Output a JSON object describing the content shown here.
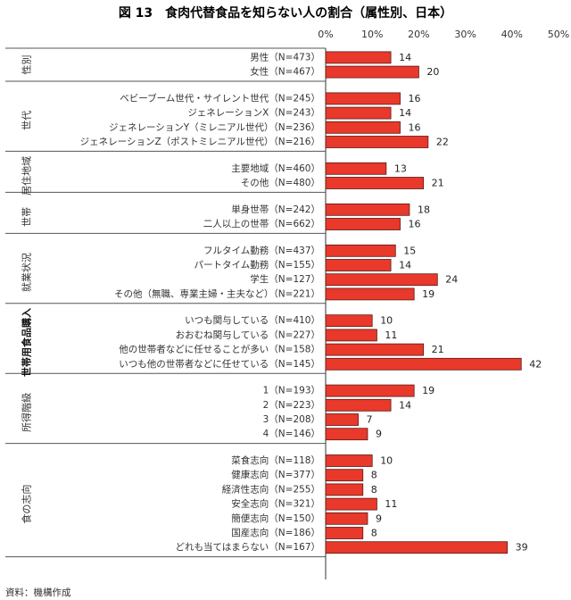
{
  "title": "図 13　食肉代替食品を知らない人の割合（属性別、日本）",
  "source": "資料：機構作成",
  "chart_data": {
    "type": "bar",
    "orientation": "horizontal",
    "xlim": [
      0,
      50
    ],
    "ticks": [
      "0%",
      "10%",
      "20%",
      "30%",
      "40%",
      "50%"
    ],
    "tick_values": [
      0,
      10,
      20,
      30,
      40,
      50
    ],
    "bar_color": "#e8392b",
    "groups": [
      {
        "label": "性別",
        "bold": false,
        "rows": [
          {
            "label": "男性（N=473）",
            "value": 14
          },
          {
            "label": "女性（N=467）",
            "value": 20
          }
        ]
      },
      {
        "label": "世代",
        "bold": false,
        "rows": [
          {
            "label": "ベビーブーム世代・サイレント世代（N=245）",
            "value": 16
          },
          {
            "label": "ジェネレーションX（N=243）",
            "value": 14
          },
          {
            "label": "ジェネレーションY（ミレニアル世代）（N=236）",
            "value": 16
          },
          {
            "label": "ジェネレーションZ（ポストミレニアル世代）（N=216）",
            "value": 22
          }
        ]
      },
      {
        "label": "居住地域",
        "bold": false,
        "rows": [
          {
            "label": "主要地域（N=460）",
            "value": 13
          },
          {
            "label": "その他（N=480）",
            "value": 21
          }
        ]
      },
      {
        "label": "世帯",
        "bold": false,
        "rows": [
          {
            "label": "単身世帯（N=242）",
            "value": 18
          },
          {
            "label": "二人以上の世帯（N=662）",
            "value": 16
          }
        ]
      },
      {
        "label": "就業状況",
        "bold": false,
        "rows": [
          {
            "label": "フルタイム勤務（N=437）",
            "value": 15
          },
          {
            "label": "パートタイム勤務（N=155）",
            "value": 14
          },
          {
            "label": "学生（N=127）",
            "value": 24
          },
          {
            "label": "その他（無職、専業主婦・主夫など）（N=221）",
            "value": 19
          }
        ]
      },
      {
        "label": "世帯用食品購入",
        "bold": true,
        "rows": [
          {
            "label": "いつも関与している（N=410）",
            "value": 10
          },
          {
            "label": "おおむね関与している（N=227）",
            "value": 11
          },
          {
            "label": "他の世帯者などに任せることが多い（N=158）",
            "value": 21
          },
          {
            "label": "いつも他の世帯者などに任せている（N=145）",
            "value": 42
          }
        ]
      },
      {
        "label": "所得階級",
        "bold": false,
        "rows": [
          {
            "label": "1（N=193）",
            "value": 19
          },
          {
            "label": "2（N=223）",
            "value": 14
          },
          {
            "label": "3（N=208）",
            "value": 7
          },
          {
            "label": "4（N=146）",
            "value": 9
          }
        ]
      },
      {
        "label": "食の志向",
        "bold": false,
        "rows": [
          {
            "label": "菜食志向（N=118）",
            "value": 10
          },
          {
            "label": "健康志向（N=377）",
            "value": 8
          },
          {
            "label": "経済性志向（N=255）",
            "value": 8
          },
          {
            "label": "安全志向（N=321）",
            "value": 11
          },
          {
            "label": "簡便志向（N=150）",
            "value": 9
          },
          {
            "label": "国産志向（N=186）",
            "value": 8
          },
          {
            "label": "どれも当てはまらない（N=167）",
            "value": 39
          }
        ]
      }
    ]
  }
}
